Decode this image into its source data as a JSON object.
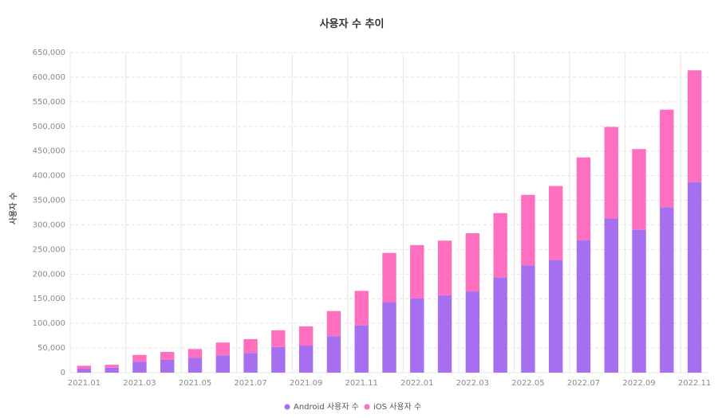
{
  "chart_data": {
    "type": "bar",
    "stacked": true,
    "title": "사용자 수 추이",
    "ylabel": "사용자 수",
    "xlabel": "",
    "ylim": [
      0,
      650000
    ],
    "yticks": [
      0,
      50000,
      100000,
      150000,
      200000,
      250000,
      300000,
      350000,
      400000,
      450000,
      500000,
      550000,
      600000,
      650000
    ],
    "ytick_labels": [
      "0",
      "50,000",
      "100,000",
      "150,000",
      "200,000",
      "250,000",
      "300,000",
      "350,000",
      "400,000",
      "450,000",
      "500,000",
      "550,000",
      "600,000",
      "650,000"
    ],
    "categories": [
      "2021.01",
      "2021.02",
      "2021.03",
      "2021.04",
      "2021.05",
      "2021.06",
      "2021.07",
      "2021.08",
      "2021.09",
      "2021.10",
      "2021.11",
      "2021.12",
      "2022.01",
      "2022.02",
      "2022.03",
      "2022.04",
      "2022.05",
      "2022.06",
      "2022.07",
      "2022.08",
      "2022.09",
      "2022.10",
      "2022.11"
    ],
    "xtick_labels": [
      "2021.01",
      "",
      "2021.03",
      "",
      "2021.05",
      "",
      "2021.07",
      "",
      "2021.09",
      "",
      "2021.11",
      "",
      "2022.01",
      "",
      "2022.03",
      "",
      "2022.05",
      "",
      "2022.07",
      "",
      "2022.09",
      "",
      "2022.11"
    ],
    "series": [
      {
        "name": "Android 사용자 수",
        "color": "#a66ff0",
        "values": [
          8000,
          10000,
          22000,
          26000,
          30000,
          35000,
          40000,
          52000,
          55000,
          74000,
          96000,
          143000,
          151000,
          157000,
          165000,
          193000,
          218000,
          229000,
          269000,
          313000,
          290000,
          336000,
          387000
        ]
      },
      {
        "name": "iOS 사용자 수",
        "color": "#ff6fbf",
        "values": [
          6000,
          6000,
          14000,
          16000,
          18000,
          26000,
          28000,
          34000,
          39000,
          51000,
          70000,
          100000,
          108000,
          111000,
          118000,
          131000,
          143000,
          150000,
          168000,
          186000,
          164000,
          198000,
          227000
        ]
      }
    ],
    "grid": true,
    "legend_position": "bottom-center"
  }
}
